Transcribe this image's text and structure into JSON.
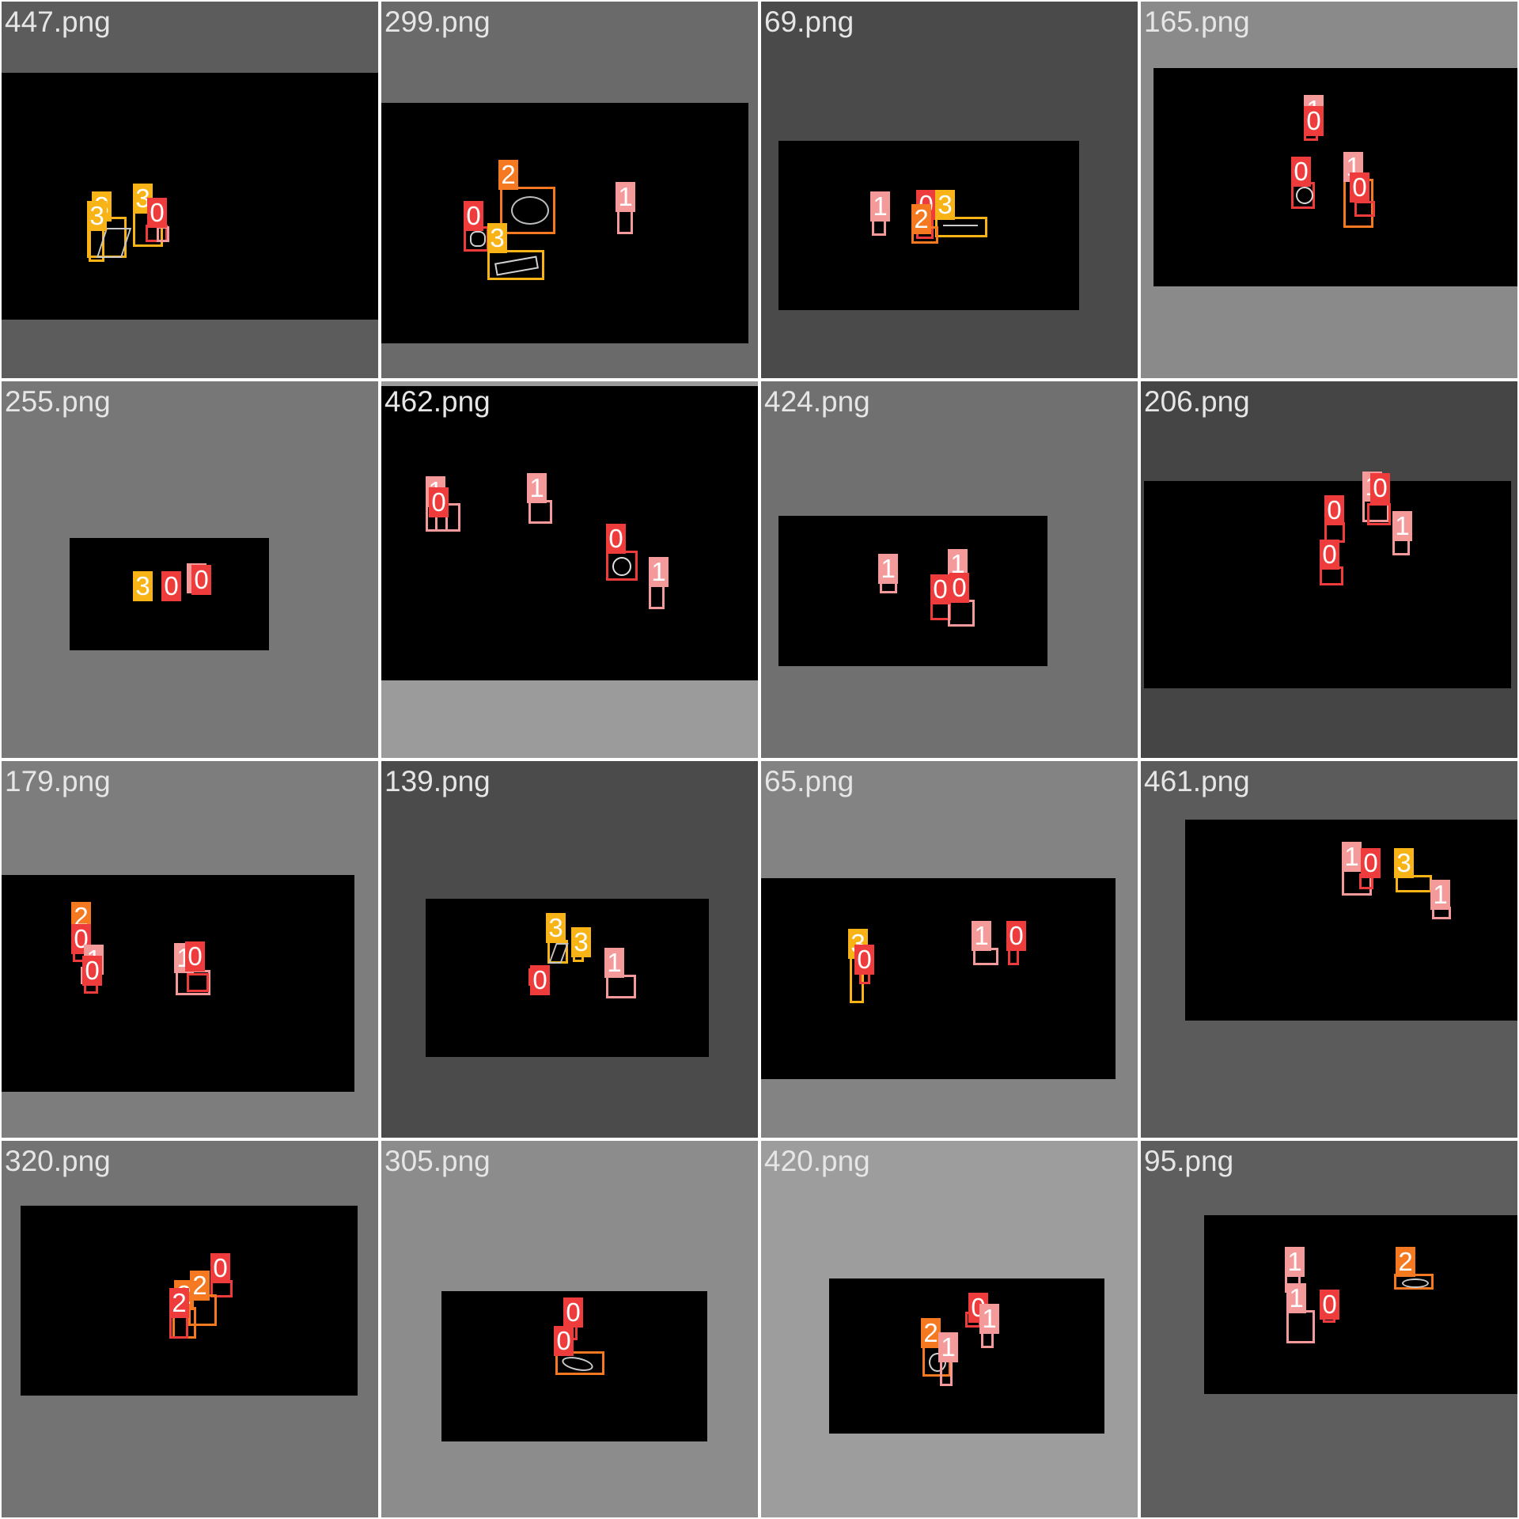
{
  "class_colors": {
    "0": "#ee3b3b",
    "1": "#f59a9a",
    "2": "#f47920",
    "3": "#f8b316"
  },
  "tiles": [
    {
      "name": "447.png",
      "background": "#5c5c5c",
      "labels": [
        "3",
        "3",
        "3",
        "0"
      ]
    },
    {
      "name": "299.png",
      "background": "#6a6a6a",
      "labels": [
        "2",
        "0",
        "3",
        "1"
      ]
    },
    {
      "name": "69.png",
      "background": "#4a4a4a",
      "labels": [
        "1",
        "0",
        "3",
        "2"
      ]
    },
    {
      "name": "165.png",
      "background": "#8a8a8a",
      "labels": [
        "1",
        "0",
        "0",
        "1",
        "0"
      ]
    },
    {
      "name": "255.png",
      "background": "#777777",
      "labels": [
        "3",
        "0",
        "1",
        "0"
      ]
    },
    {
      "name": "462.png",
      "background": "#9b9b9b",
      "labels": [
        "1",
        "0",
        "1",
        "0",
        "1"
      ]
    },
    {
      "name": "424.png",
      "background": "#707070",
      "labels": [
        "1",
        "1",
        "0",
        "0"
      ]
    },
    {
      "name": "206.png",
      "background": "#454545",
      "labels": [
        "0",
        "1",
        "0",
        "1",
        "0"
      ]
    },
    {
      "name": "179.png",
      "background": "#7d7d7d",
      "labels": [
        "2",
        "0",
        "1",
        "0",
        "1",
        "0"
      ]
    },
    {
      "name": "139.png",
      "background": "#4b4b4b",
      "labels": [
        "3",
        "3",
        "0",
        "1"
      ]
    },
    {
      "name": "65.png",
      "background": "#838383",
      "labels": [
        "3",
        "0",
        "1",
        "0"
      ]
    },
    {
      "name": "461.png",
      "background": "#5b5b5b",
      "labels": [
        "1",
        "0",
        "3",
        "1"
      ]
    },
    {
      "name": "320.png",
      "background": "#737373",
      "labels": [
        "0",
        "2",
        "2",
        "2"
      ]
    },
    {
      "name": "305.png",
      "background": "#8c8c8c",
      "labels": [
        "0",
        "0"
      ]
    },
    {
      "name": "420.png",
      "background": "#9d9d9d",
      "labels": [
        "0",
        "1",
        "2",
        "1"
      ]
    },
    {
      "name": "95.png",
      "background": "#5e5e5e",
      "labels": [
        "1",
        "2",
        "1",
        "0"
      ]
    }
  ]
}
